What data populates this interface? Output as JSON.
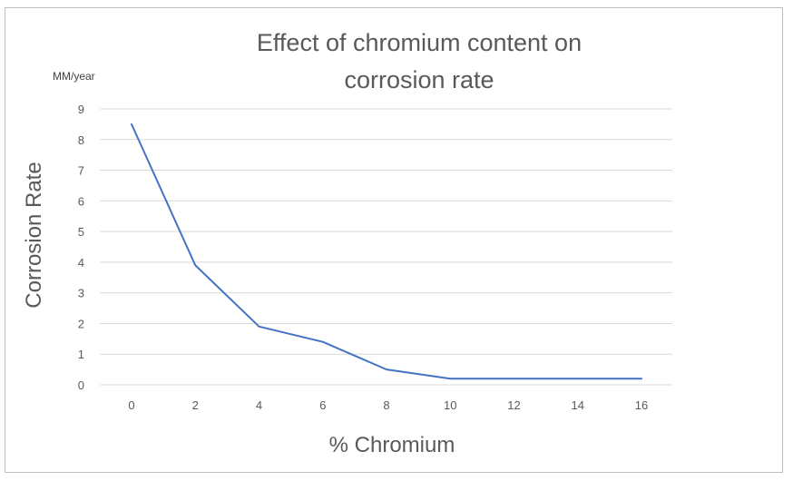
{
  "chart_data": {
    "type": "line",
    "title_lines": [
      "Effect of chromium content on",
      "corrosion rate"
    ],
    "xlabel": "% Chromium",
    "ylabel": "Corrosion Rate",
    "y_unit": "MM/year",
    "x": [
      0,
      2,
      4,
      6,
      8,
      10,
      12,
      14,
      16
    ],
    "x_tick_labels": [
      "0",
      "2",
      "4",
      "6",
      "8",
      "10",
      "12",
      "14",
      "16"
    ],
    "y_tick_labels": [
      "0",
      "1",
      "2",
      "3",
      "4",
      "5",
      "6",
      "7",
      "8",
      "9"
    ],
    "ylim": [
      0,
      9
    ],
    "grid": true,
    "series": [
      {
        "name": "Corrosion rate",
        "color": "#4472C4",
        "values": [
          8.5,
          3.9,
          1.9,
          1.4,
          0.5,
          0.2,
          0.2,
          0.2,
          0.2
        ]
      }
    ]
  }
}
